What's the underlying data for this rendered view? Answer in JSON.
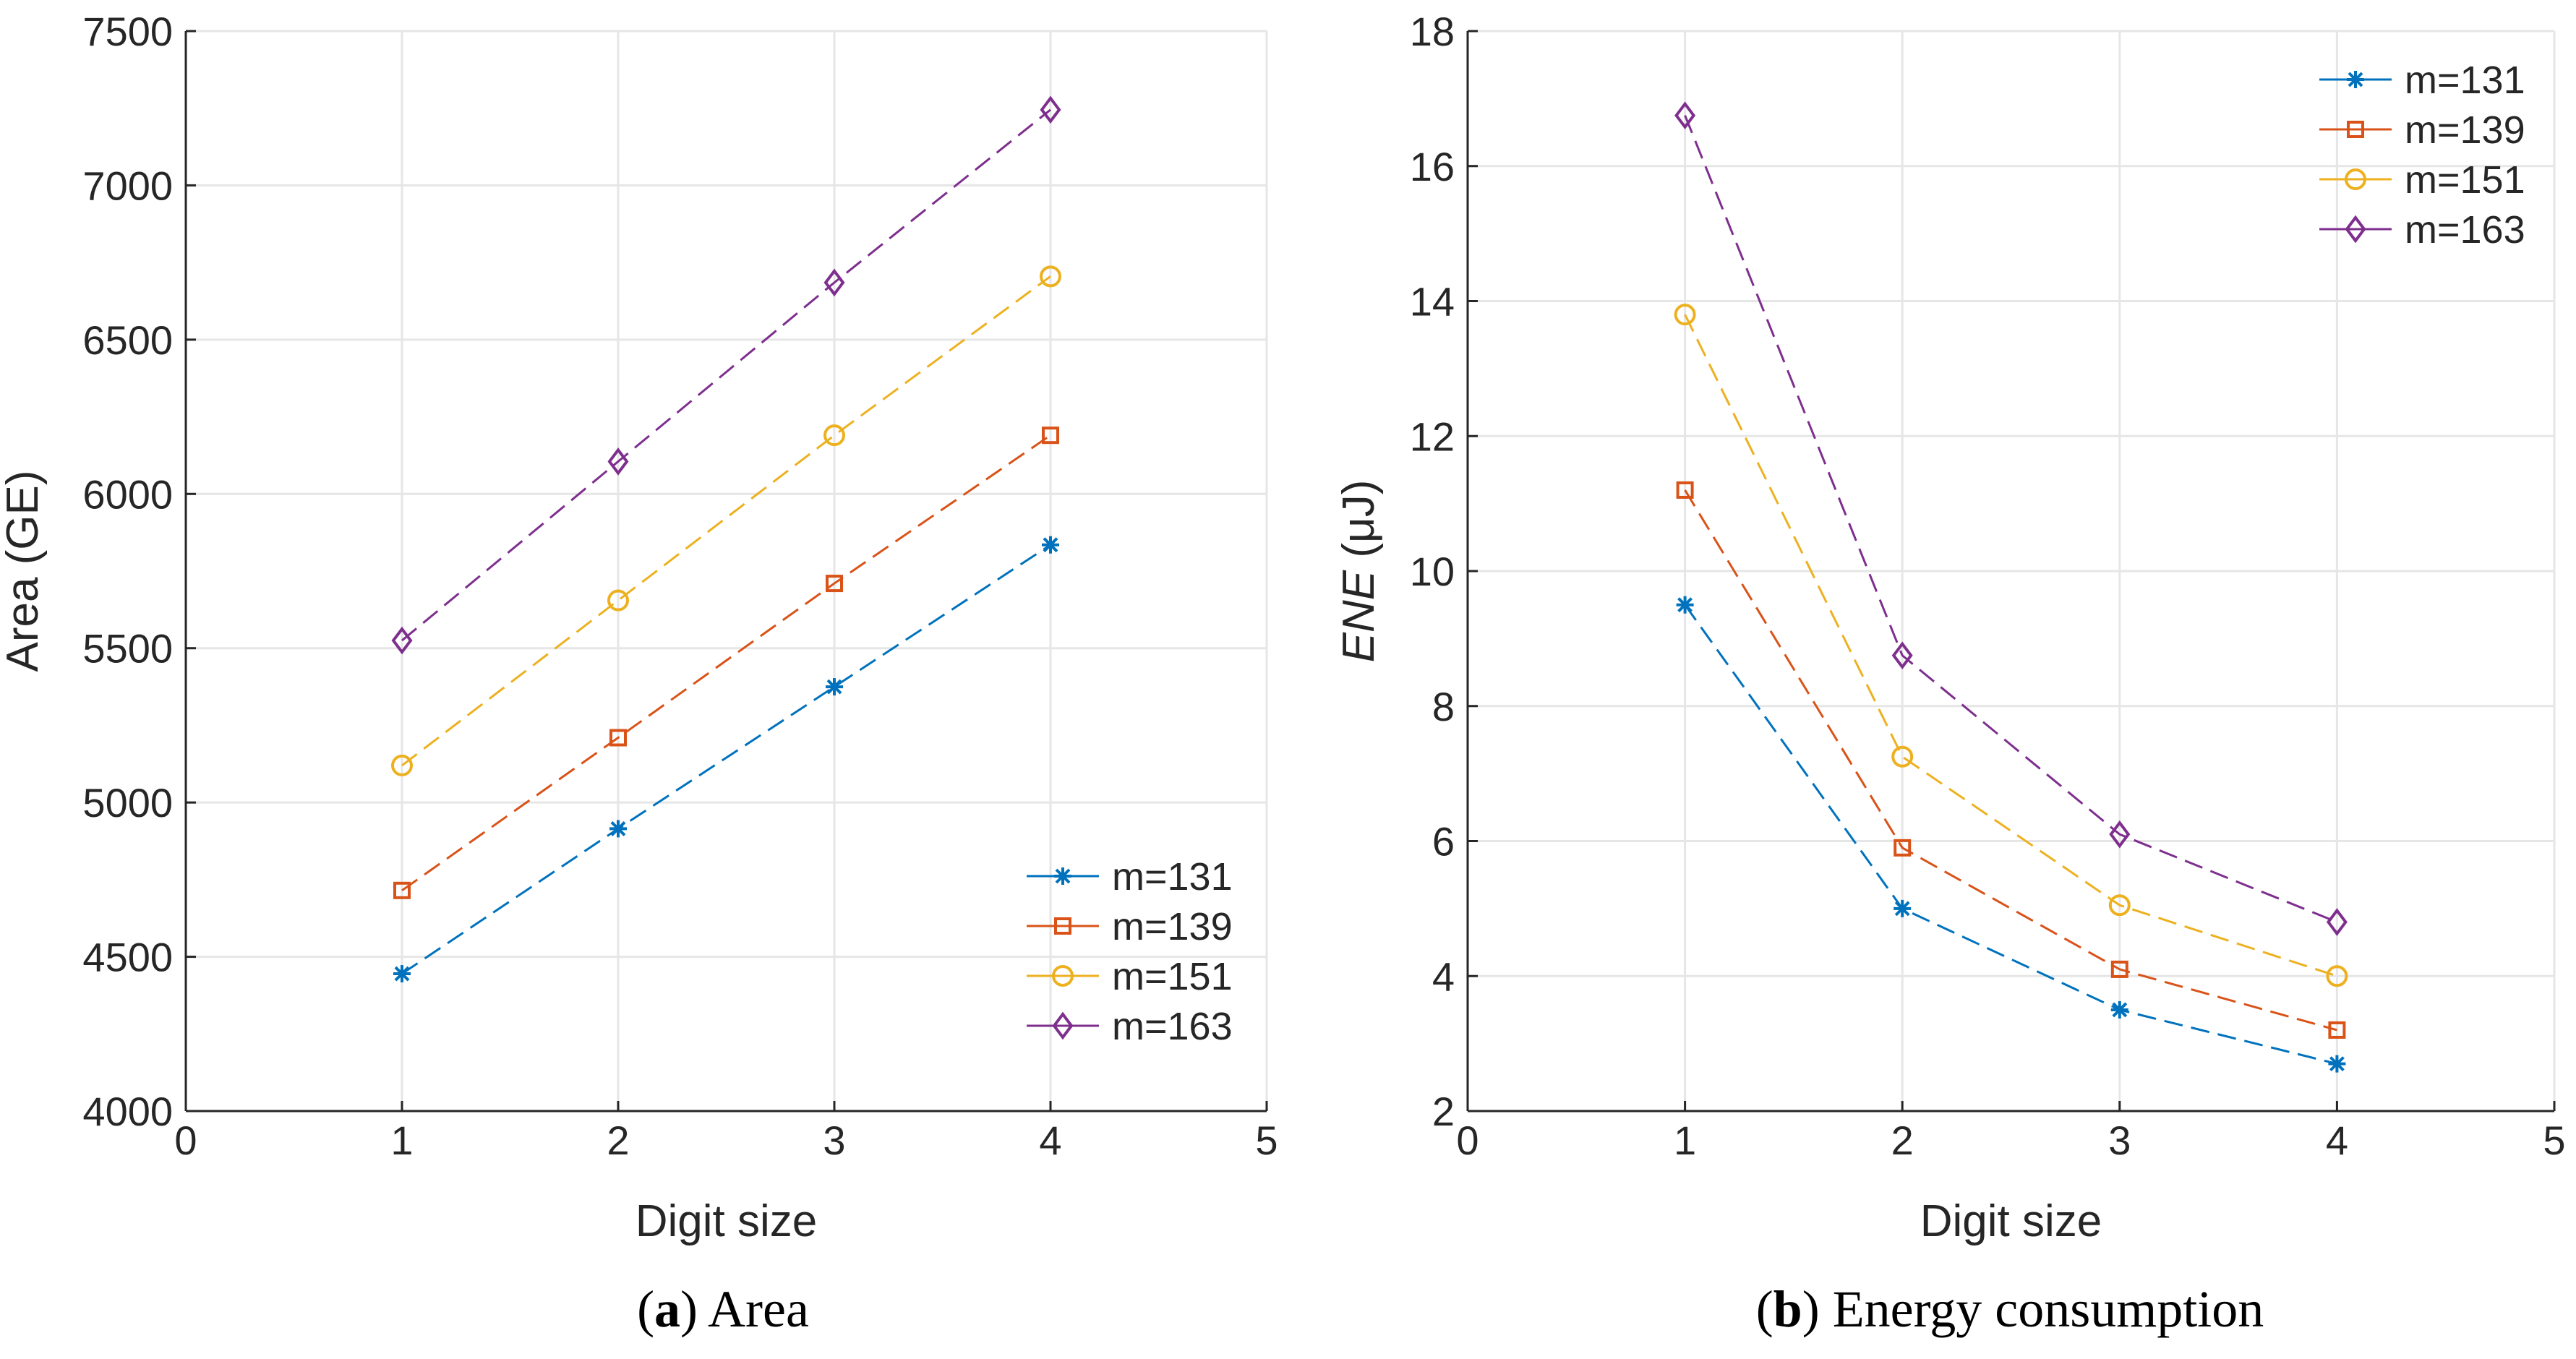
{
  "colors": {
    "m131": "#0072bd",
    "m139": "#d95319",
    "m151": "#edb120",
    "m163": "#7e2f8e"
  },
  "chart_data": [
    {
      "type": "line",
      "title": "",
      "xlabel": "Digit size",
      "ylabel": "Area (GE)",
      "xlim": [
        0,
        5
      ],
      "ylim": [
        4000,
        7500
      ],
      "xticks": [
        0,
        1,
        2,
        3,
        4,
        5
      ],
      "yticks": [
        4000,
        4500,
        5000,
        5500,
        6000,
        6500,
        7000,
        7500
      ],
      "grid": true,
      "legend": "bottom-right",
      "x": [
        1,
        2,
        3,
        4
      ],
      "series": [
        {
          "name": "m=131",
          "marker": "asterisk",
          "values": [
            4445,
            4915,
            5375,
            5835
          ]
        },
        {
          "name": "m=139",
          "marker": "square",
          "values": [
            4715,
            5210,
            5710,
            6190
          ]
        },
        {
          "name": "m=151",
          "marker": "circle",
          "values": [
            5120,
            5655,
            6190,
            6705
          ]
        },
        {
          "name": "m=163",
          "marker": "diamond",
          "values": [
            5525,
            6105,
            6685,
            7245
          ]
        }
      ],
      "caption": {
        "label": "a",
        "text": "Area"
      }
    },
    {
      "type": "line",
      "title": "",
      "xlabel": "Digit size",
      "ylabel": "ENE (μJ)",
      "ylabel_main": "ENE",
      "ylabel_unit": "(μJ)",
      "xlim": [
        0,
        5
      ],
      "ylim": [
        2,
        18
      ],
      "xticks": [
        0,
        1,
        2,
        3,
        4,
        5
      ],
      "yticks": [
        2,
        4,
        6,
        8,
        10,
        12,
        14,
        16,
        18
      ],
      "grid": true,
      "legend": "top-right",
      "x": [
        1,
        2,
        3,
        4
      ],
      "series": [
        {
          "name": "m=131",
          "marker": "asterisk",
          "values": [
            9.5,
            5.0,
            3.5,
            2.7
          ]
        },
        {
          "name": "m=139",
          "marker": "square",
          "values": [
            11.2,
            5.9,
            4.1,
            3.2
          ]
        },
        {
          "name": "m=151",
          "marker": "circle",
          "values": [
            13.8,
            7.25,
            5.05,
            4.0
          ]
        },
        {
          "name": "m=163",
          "marker": "diamond",
          "values": [
            16.75,
            8.75,
            6.1,
            4.8
          ]
        }
      ],
      "caption": {
        "label": "b",
        "text": "Energy consumption"
      }
    }
  ]
}
